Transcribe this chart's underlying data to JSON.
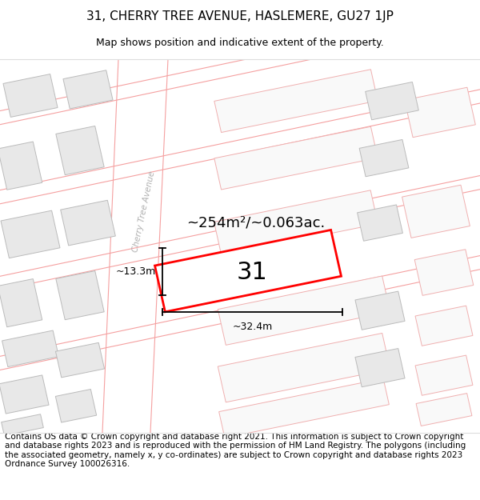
{
  "title": "31, CHERRY TREE AVENUE, HASLEMERE, GU27 1JP",
  "subtitle": "Map shows position and indicative extent of the property.",
  "footer": "Contains OS data © Crown copyright and database right 2021. This information is subject to Crown copyright and database rights 2023 and is reproduced with the permission of HM Land Registry. The polygons (including the associated geometry, namely x, y co-ordinates) are subject to Crown copyright and database rights 2023 Ordnance Survey 100026316.",
  "area_label": "~254m²/~0.063ac.",
  "width_label": "~32.4m",
  "height_label": "~13.3m",
  "number_label": "31",
  "highlight_color": "#ff0000",
  "road_line_color": "#f5a0a0",
  "block_fill": "#e8e8e8",
  "block_edge": "#bbbbbb",
  "plot_outline": "#f0b0b0",
  "title_fontsize": 11,
  "subtitle_fontsize": 9,
  "footer_fontsize": 7.5,
  "street_label": "Cherry Tree Avenue",
  "street_label_color": "#b0b0b0"
}
